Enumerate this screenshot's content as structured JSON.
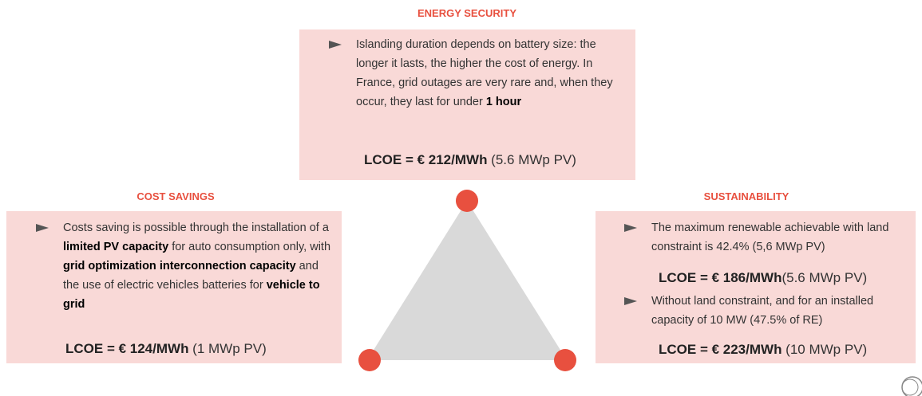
{
  "energy_security": {
    "title": "ENERGY SECURITY",
    "bullets": [
      [
        "Islanding duration depends on battery size: the longer it lasts, the higher the cost of energy. In France, grid outages are very rare and, when they occur, they last for under ",
        "1 hour"
      ]
    ],
    "lcoe": [
      "LCOE = € 212/MWh",
      " (5.6 MWp PV)"
    ]
  },
  "cost_savings": {
    "title": "COST SAVINGS",
    "bullets": [
      [
        "Costs saving is possible through the installation of a ",
        "limited PV capacity",
        " for auto consumption only, with ",
        "grid optimization interconnection capacity",
        " and the use of electric vehicles batteries for ",
        "vehicle to grid"
      ]
    ],
    "lcoe": [
      "LCOE = € 124/MWh",
      " (1 MWp PV)"
    ]
  },
  "sustainability": {
    "title": "SUSTAINABILITY",
    "bullets": [
      [
        "The maximum renewable achievable with land constraint is 42.4% (5,6 MWp PV)"
      ],
      [
        "Without land constraint, and for an installed capacity of 10 MW (47.5% of RE)"
      ]
    ],
    "lcoe": [
      [
        "LCOE = € 186/MWh",
        "(5.6 MWp PV)"
      ],
      [
        "LCOE = € 223/MWh",
        " (10 MWp PV)"
      ]
    ]
  }
}
